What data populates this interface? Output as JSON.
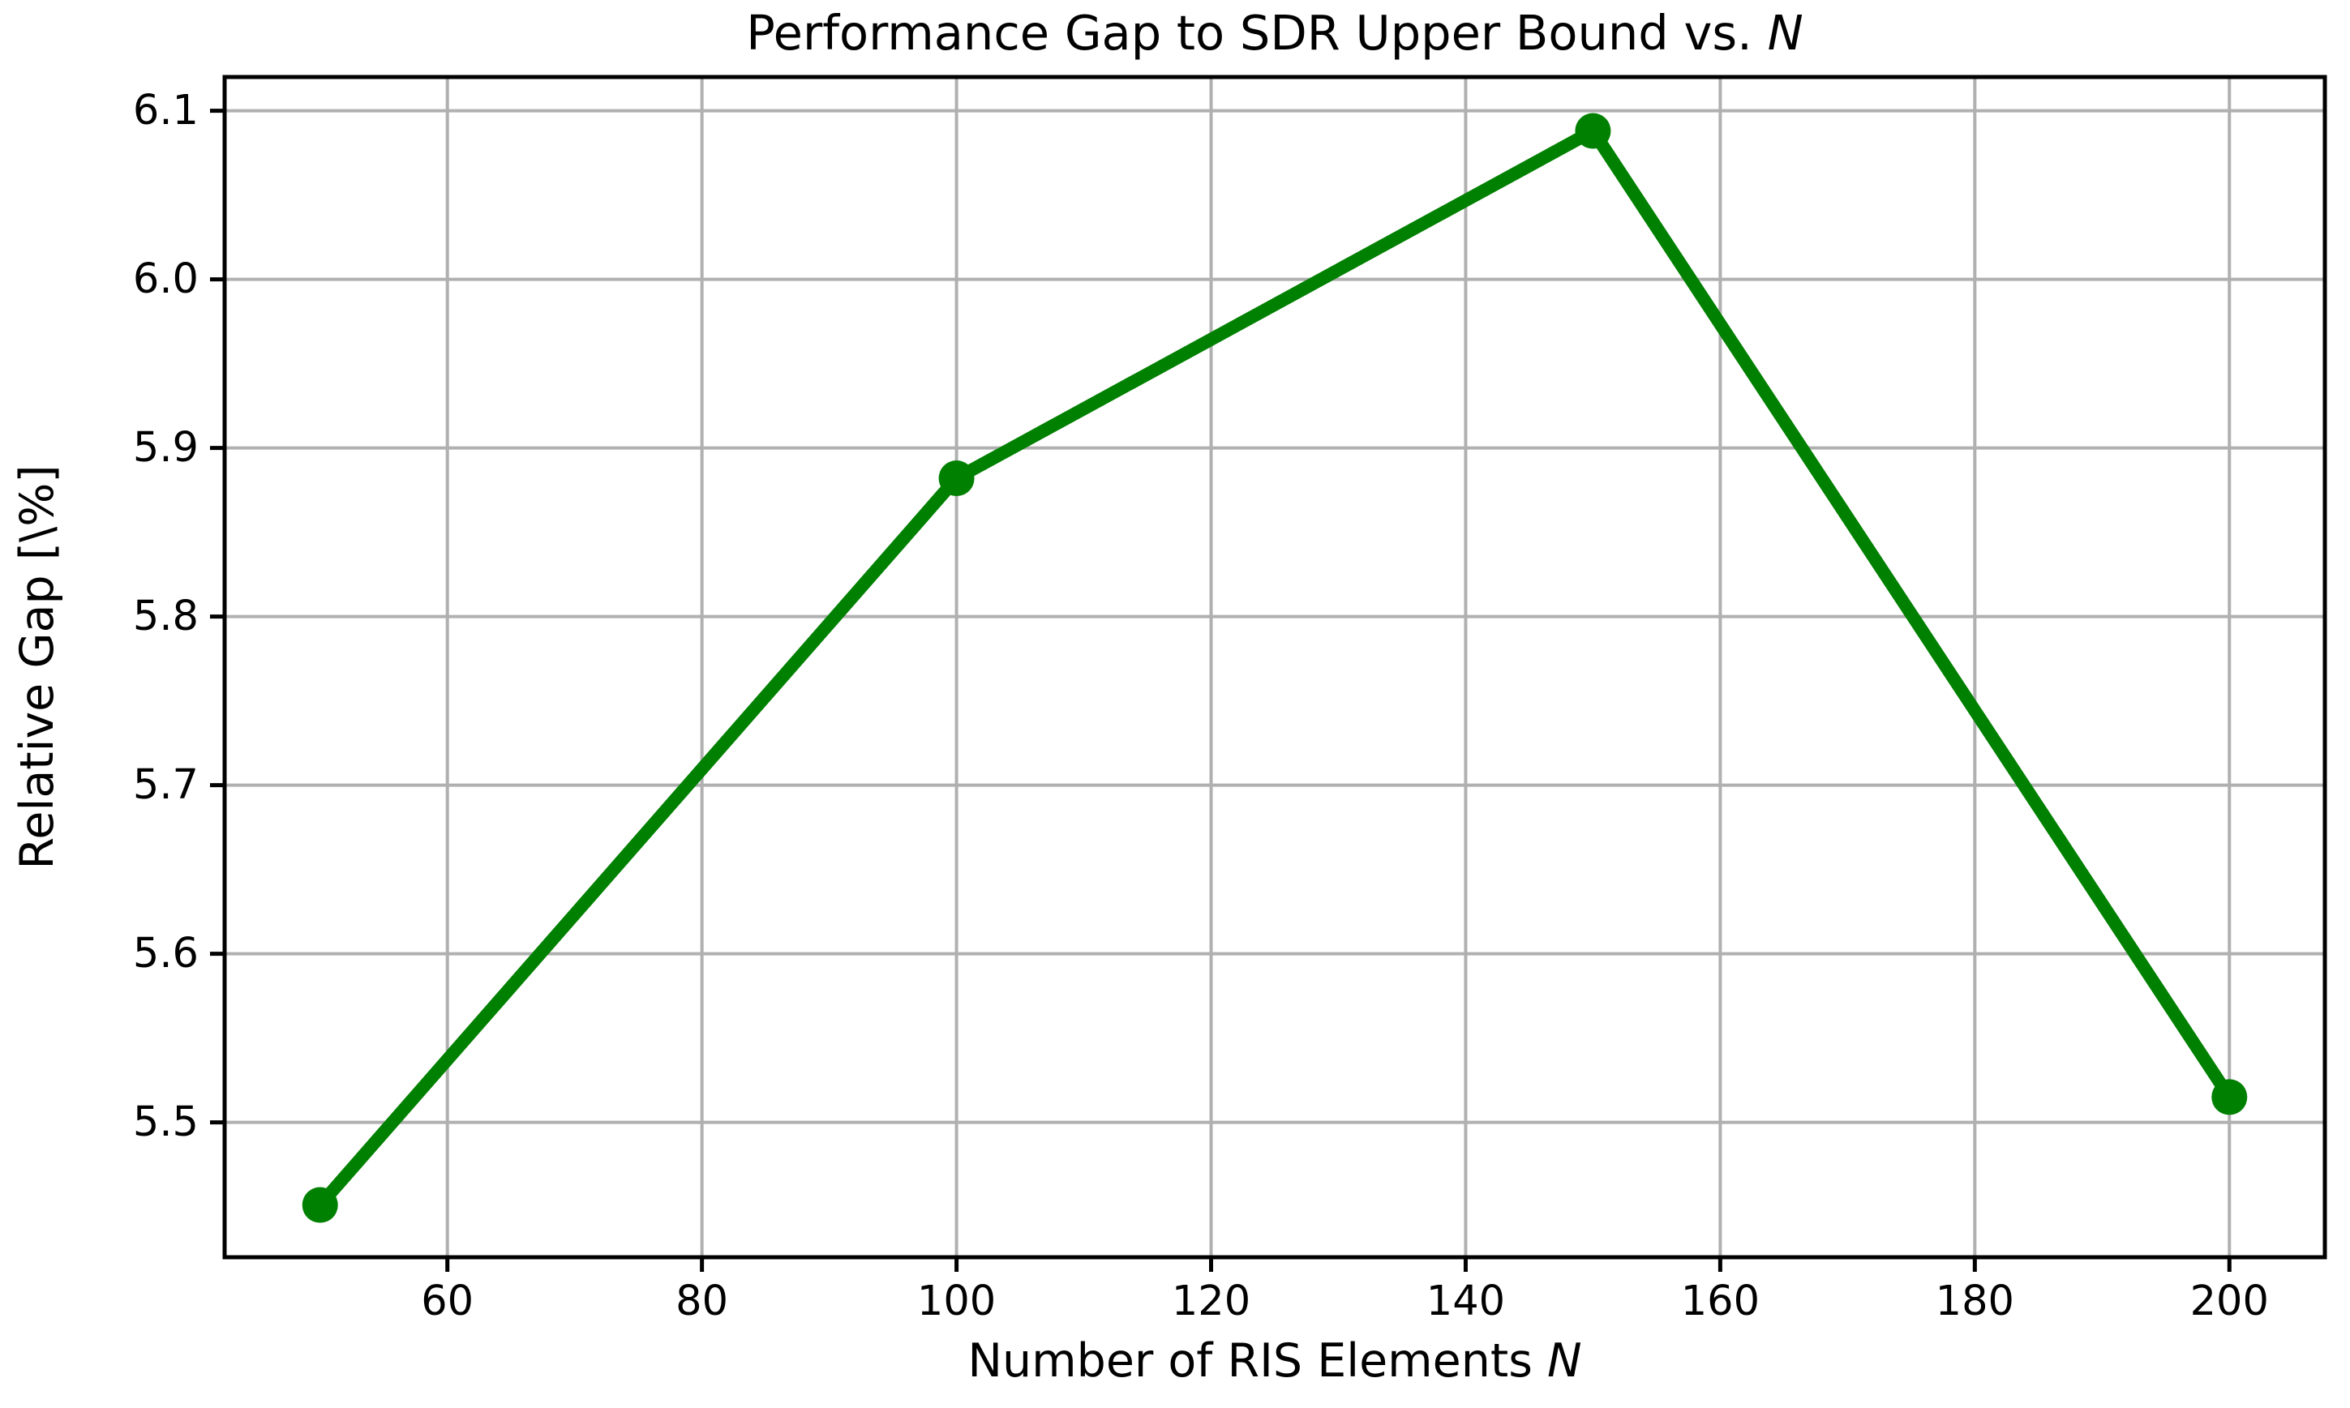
{
  "figure": {
    "background": "#ffffff"
  },
  "chart_data": {
    "type": "line",
    "title": "Performance Gap to SDR Upper Bound vs. N",
    "title_main": "Performance Gap to SDR Upper Bound vs. ",
    "title_italic": "N",
    "xlabel": "Number of RIS Elements N",
    "xlabel_main": "Number of RIS Elements ",
    "xlabel_italic": "N",
    "ylabel": "Relative Gap [\\%]",
    "series": [
      {
        "name": "relative-gap",
        "x": [
          50,
          100,
          150,
          200
        ],
        "y": [
          5.451,
          5.882,
          6.088,
          5.515
        ],
        "color": "#008000",
        "marker": "circle",
        "line_width": 16,
        "marker_radius": 22
      }
    ],
    "x_ticks": [
      60,
      80,
      100,
      120,
      140,
      160,
      180,
      200
    ],
    "x_tick_labels": [
      "60",
      "80",
      "100",
      "120",
      "140",
      "160",
      "180",
      "200"
    ],
    "y_ticks": [
      5.5,
      5.6,
      5.7,
      5.8,
      5.9,
      6.0,
      6.1
    ],
    "y_tick_labels": [
      "5.5",
      "5.6",
      "5.7",
      "5.8",
      "5.9",
      "6.0",
      "6.1"
    ],
    "xlim": [
      42.5,
      207.5
    ],
    "ylim": [
      5.42,
      6.12
    ],
    "grid": true,
    "grid_color": "#b0b0b0",
    "axis_color": "#000000",
    "legend_position": "none"
  }
}
